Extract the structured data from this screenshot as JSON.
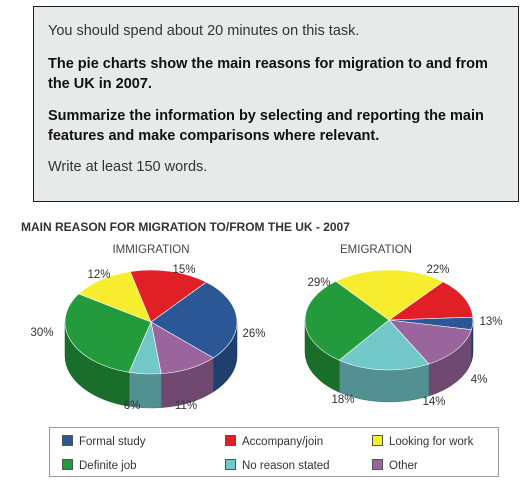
{
  "task": {
    "intro": "You should spend about 20 minutes on this task.",
    "description": "The pie charts show the main reasons for migration to and from the UK in 2007.",
    "instruction": "Summarize the information by selecting and reporting the main features and make comparisons where relevant.",
    "requirement": "Write at least 150 words."
  },
  "chart_title": "MAIN REASON FOR MIGRATION TO/FROM THE UK - 2007",
  "legend": [
    {
      "label": "Formal study",
      "color": "#2b5797"
    },
    {
      "label": "Accompany/join",
      "color": "#e01f26"
    },
    {
      "label": "Looking for work",
      "color": "#f7ec2e"
    },
    {
      "label": "Definite job",
      "color": "#239a3b"
    },
    {
      "label": "No reason stated",
      "color": "#72c8c9"
    },
    {
      "label": "Other",
      "color": "#9a659c"
    }
  ],
  "chart_data": [
    {
      "type": "pie",
      "title": "IMMIGRATION",
      "slices": [
        {
          "category": "Formal study",
          "value": 26
        },
        {
          "category": "Other",
          "value": 11
        },
        {
          "category": "No reason stated",
          "value": 6
        },
        {
          "category": "Definite job",
          "value": 30
        },
        {
          "category": "Looking for work",
          "value": 12
        },
        {
          "category": "Accompany/join",
          "value": 15
        }
      ]
    },
    {
      "type": "pie",
      "title": "EMIGRATION",
      "slices": [
        {
          "category": "Accompany/join",
          "value": 13
        },
        {
          "category": "Formal study",
          "value": 4
        },
        {
          "category": "Other",
          "value": 14
        },
        {
          "category": "No reason stated",
          "value": 18
        },
        {
          "category": "Definite job",
          "value": 29
        },
        {
          "category": "Looking for work",
          "value": 22
        }
      ]
    }
  ]
}
